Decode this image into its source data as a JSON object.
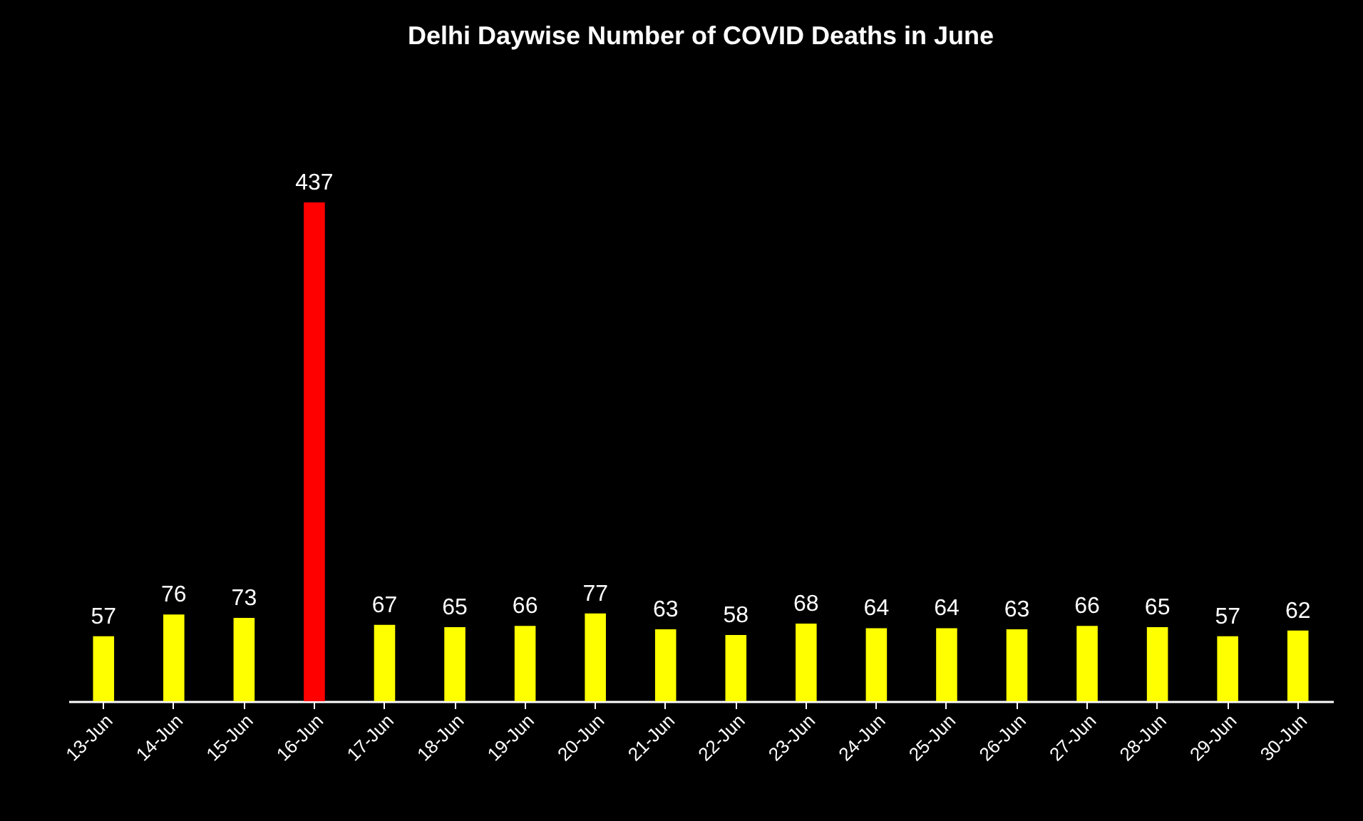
{
  "chart_data": {
    "type": "bar",
    "title": "Delhi Daywise Number of COVID Deaths in June",
    "categories": [
      "13-Jun",
      "14-Jun",
      "15-Jun",
      "16-Jun",
      "17-Jun",
      "18-Jun",
      "19-Jun",
      "20-Jun",
      "21-Jun",
      "22-Jun",
      "23-Jun",
      "24-Jun",
      "25-Jun",
      "26-Jun",
      "27-Jun",
      "28-Jun",
      "29-Jun",
      "30-Jun"
    ],
    "values": [
      57,
      76,
      73,
      437,
      67,
      65,
      66,
      77,
      63,
      58,
      68,
      64,
      64,
      63,
      66,
      65,
      57,
      62
    ],
    "colors": [
      "#ffff00",
      "#ffff00",
      "#ffff00",
      "#ff0000",
      "#ffff00",
      "#ffff00",
      "#ffff00",
      "#ffff00",
      "#ffff00",
      "#ffff00",
      "#ffff00",
      "#ffff00",
      "#ffff00",
      "#ffff00",
      "#ffff00",
      "#ffff00",
      "#ffff00",
      "#ffff00"
    ],
    "data_labels": true
  }
}
